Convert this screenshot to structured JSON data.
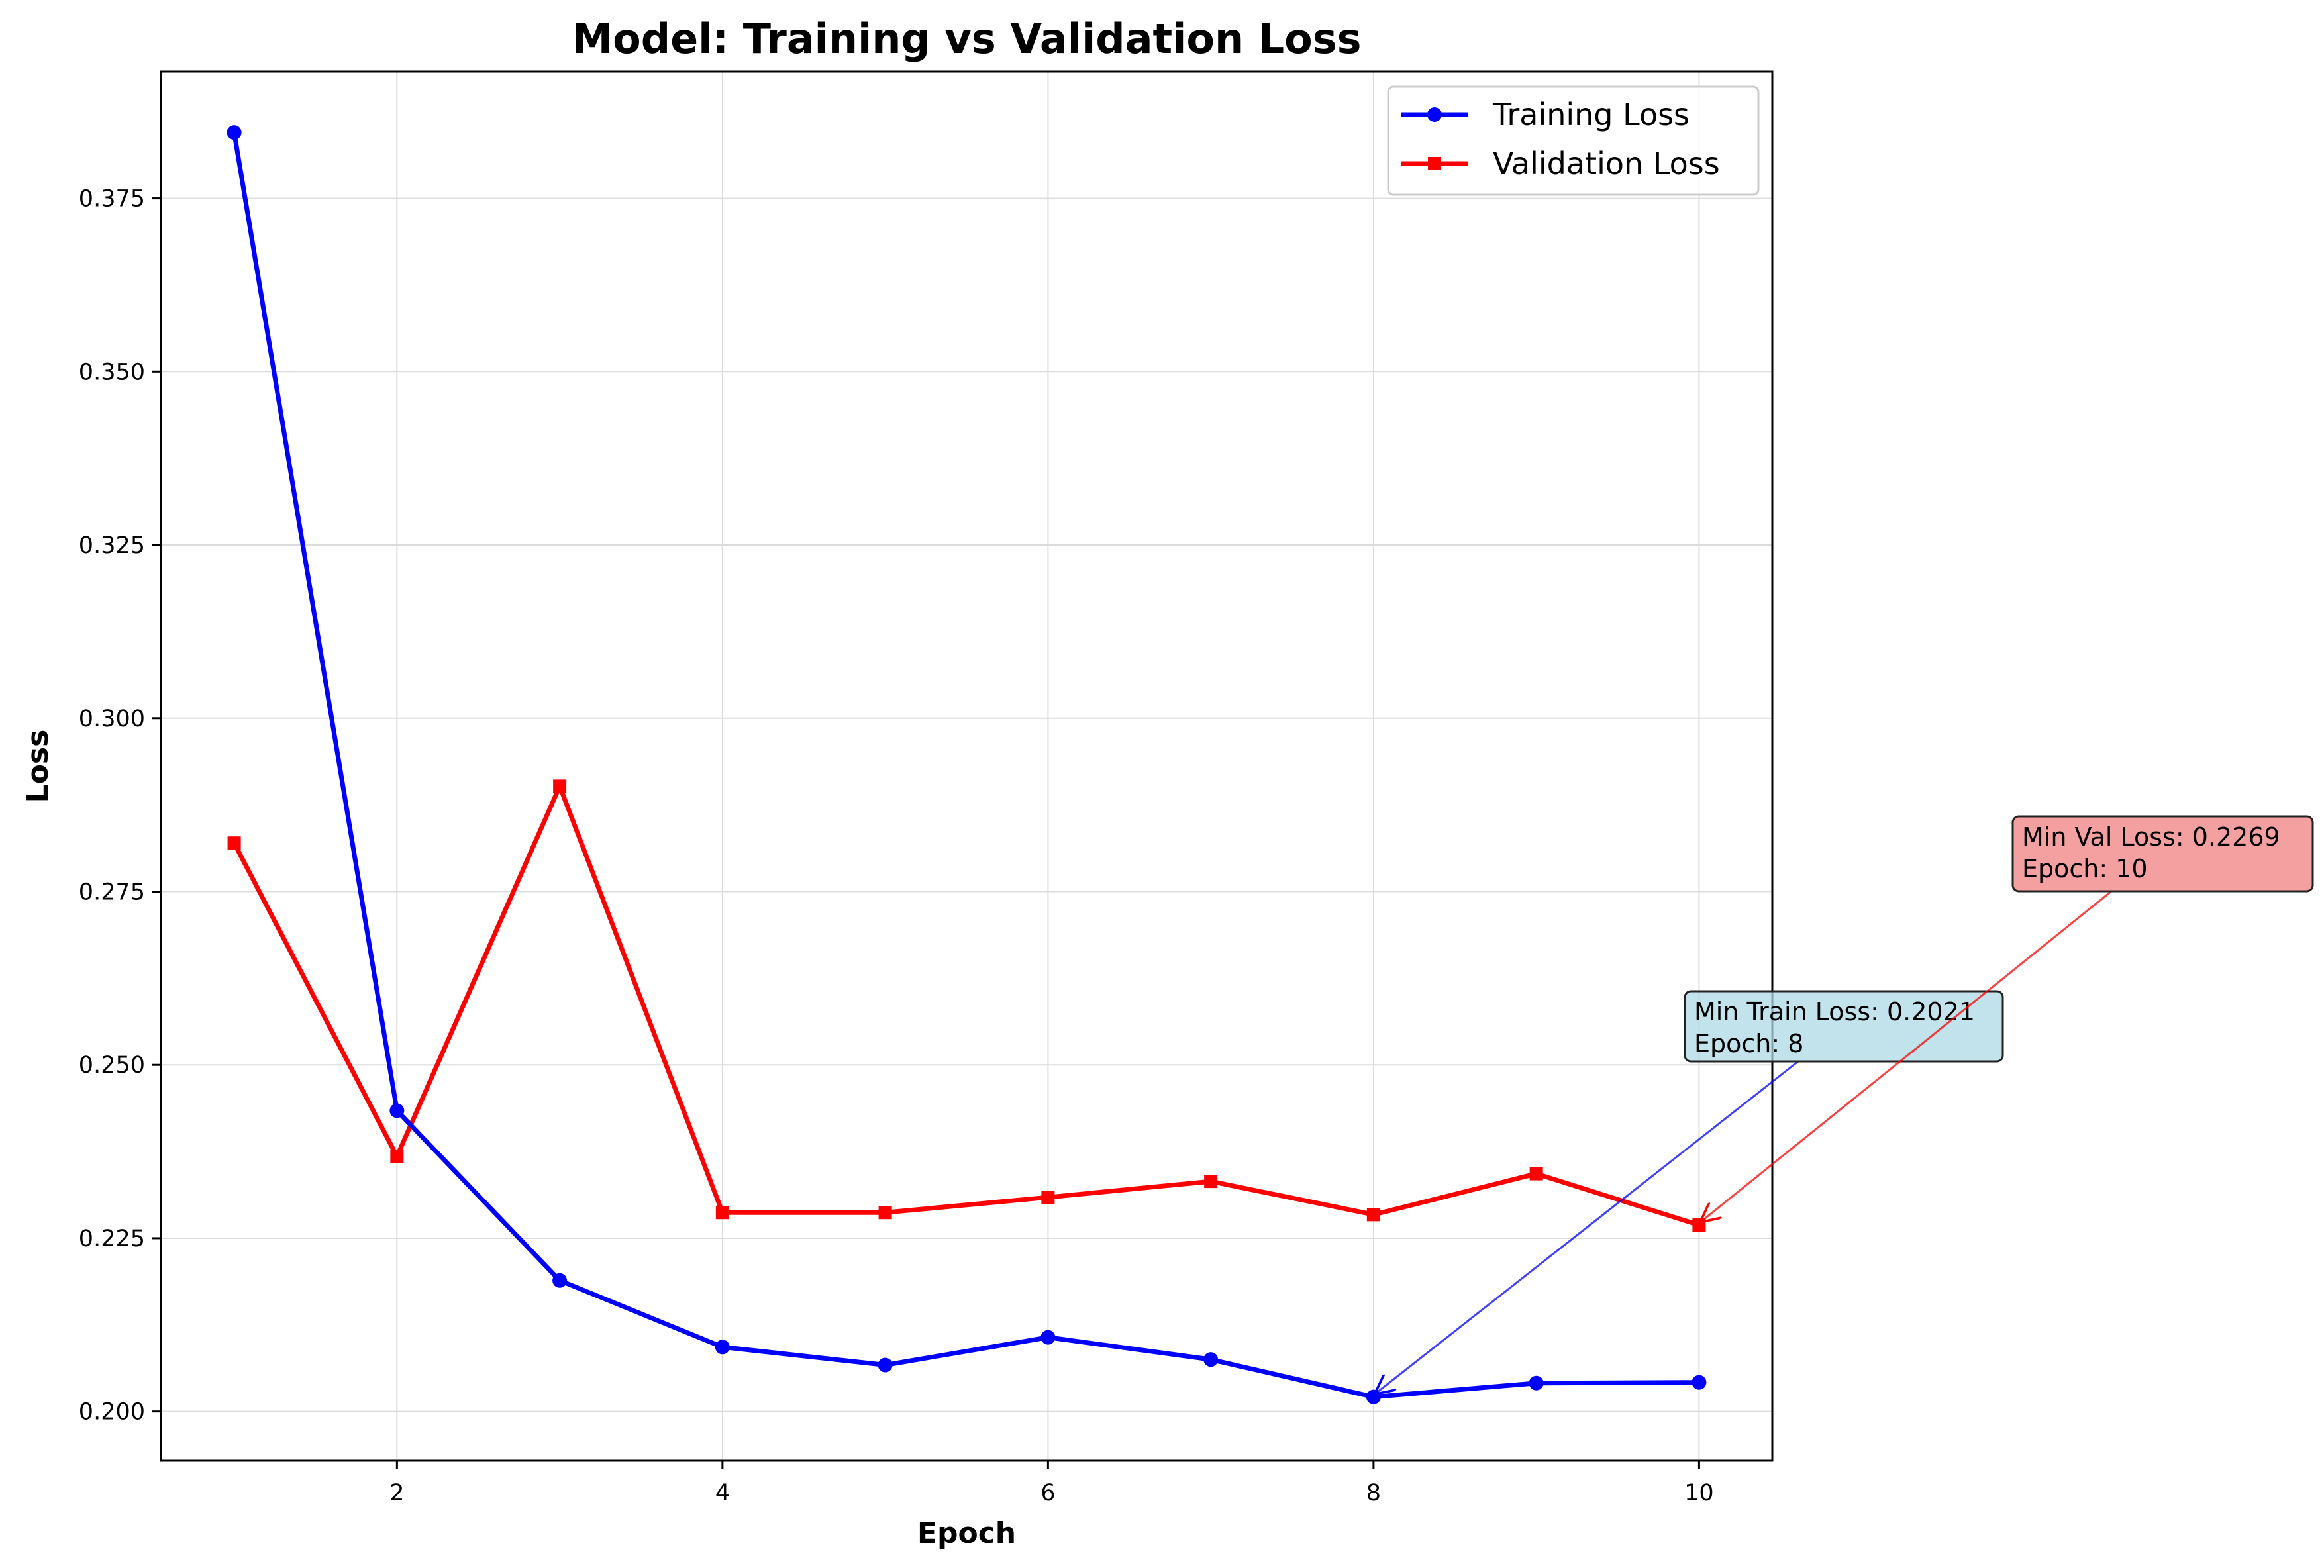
{
  "chart_data": {
    "type": "line",
    "title": "Model: Training vs Validation Loss",
    "xlabel": "Epoch",
    "ylabel": "Loss",
    "xlim": [
      0.55,
      10.45
    ],
    "ylim": [
      0.1929,
      0.3933
    ],
    "x_ticks": [
      2,
      4,
      6,
      8,
      10
    ],
    "x_tick_labels": [
      "2",
      "4",
      "6",
      "8",
      "10"
    ],
    "y_ticks": [
      0.2,
      0.225,
      0.25,
      0.275,
      0.3,
      0.325,
      0.35,
      0.375
    ],
    "y_tick_labels": [
      "0.200",
      "0.225",
      "0.250",
      "0.275",
      "0.300",
      "0.325",
      "0.350",
      "0.375"
    ],
    "grid": true,
    "legend_position": "top-right",
    "x": [
      1,
      2,
      3,
      4,
      5,
      6,
      7,
      8,
      9,
      10
    ],
    "series": [
      {
        "name": "Training Loss",
        "color": "#0000ff",
        "marker": "circle",
        "values": [
          0.3845,
          0.2434,
          0.2189,
          0.2093,
          0.2067,
          0.2107,
          0.2075,
          0.2021,
          0.2041,
          0.2042
        ]
      },
      {
        "name": "Validation Loss",
        "color": "#ff0000",
        "marker": "square",
        "values": [
          0.282,
          0.2368,
          0.2902,
          0.2287,
          0.2287,
          0.2309,
          0.2332,
          0.2284,
          0.2343,
          0.2269
        ]
      }
    ],
    "annotations": [
      {
        "lines": [
          "Min Train Loss: 0.2021",
          "Epoch: 8"
        ],
        "target_x": 8,
        "target_y": 0.2021,
        "box_color": "#add8e6",
        "arrow_color": "#0000ff"
      },
      {
        "lines": [
          "Min Val Loss: 0.2269",
          "Epoch: 10"
        ],
        "target_x": 10,
        "target_y": 0.2269,
        "box_color": "#f08080",
        "arrow_color": "#ff0000"
      }
    ]
  }
}
